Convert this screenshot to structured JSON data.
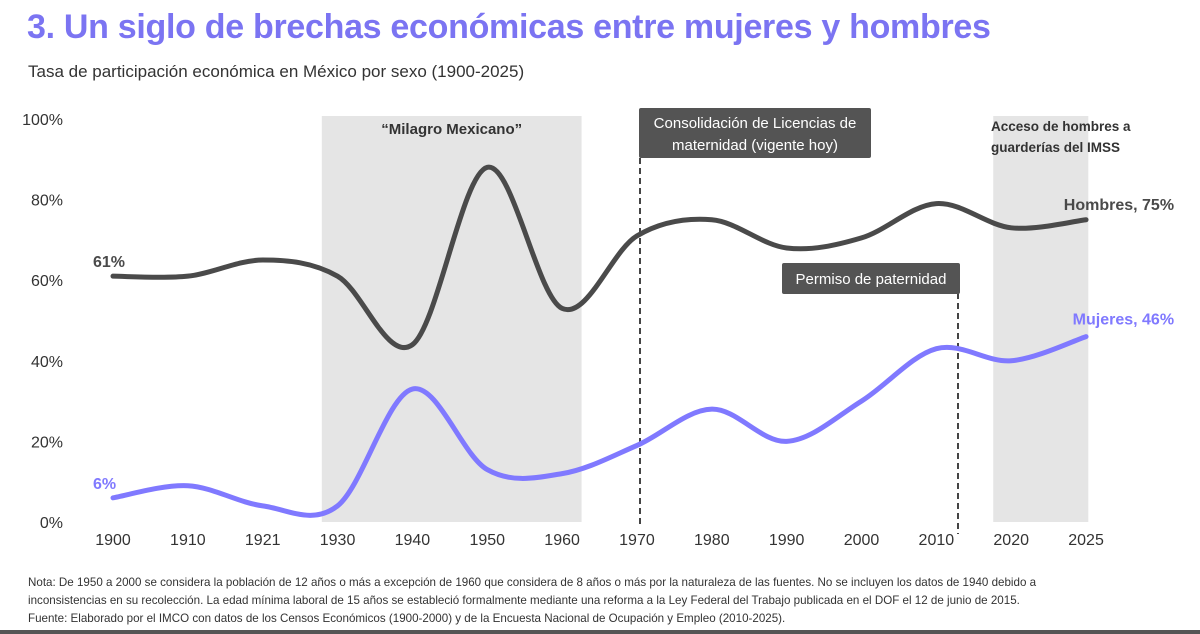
{
  "chart_data": {
    "type": "line",
    "title": "3. Un siglo de brechas económicas entre mujeres y hombres",
    "subtitle": "Tasa de participación económica en México por sexo (1900-2025)",
    "categories": [
      "1900",
      "1910",
      "1921",
      "1930",
      "1940",
      "1950",
      "1960",
      "1970",
      "1980",
      "1990",
      "2000",
      "2010",
      "2020",
      "2025"
    ],
    "ylim": [
      0,
      100
    ],
    "yticks": [
      "0%",
      "20%",
      "40%",
      "60%",
      "80%",
      "100%"
    ],
    "ytick_values": [
      0,
      20,
      40,
      60,
      80,
      100
    ],
    "grid": false,
    "series": [
      {
        "name": "Hombres",
        "label": "Hombres, 75%",
        "start_label": "61%",
        "color": "#4a4a4a",
        "values": [
          61,
          61,
          65,
          61,
          44,
          88,
          53,
          71,
          75,
          68,
          70.5,
          79,
          73,
          75
        ]
      },
      {
        "name": "Mujeres",
        "label": "Mujeres, 46%",
        "start_label": "6%",
        "color": "#8079ff",
        "values": [
          6,
          9,
          4,
          4,
          33,
          13,
          12,
          19,
          28,
          20,
          30,
          43,
          40,
          46
        ]
      }
    ],
    "annotations": {
      "milagro": "“Milagro Mexicano”",
      "licencias": [
        "Consolidación de Licencias de",
        "maternidad (vigente hoy)"
      ],
      "paternidad": "Permiso de paternidad",
      "guarderias": [
        "Acceso de hombres a",
        "guarderías del IMSS"
      ]
    },
    "colors": {
      "title": "#7b74f2",
      "shade": "#e5e5e5",
      "annotation_box": "#545454"
    }
  },
  "notes": [
    "Nota: De 1950 a 2000 se considera la población de 12 años o más a excepción de 1960 que considera de 8 años o más por la naturaleza de las fuentes. No se incluyen los datos de 1940 debido a",
    "inconsistencias en su recolección. La edad mínima laboral de 15 años se estableció formalmente mediante una reforma a la Ley Federal del Trabajo publicada en el DOF el 12 de junio de 2015.",
    "Fuente: Elaborado por el IMCO con datos de los Censos Económicos (1900-2000) y de la Encuesta Nacional de Ocupación y Empleo (2010-2025)."
  ]
}
